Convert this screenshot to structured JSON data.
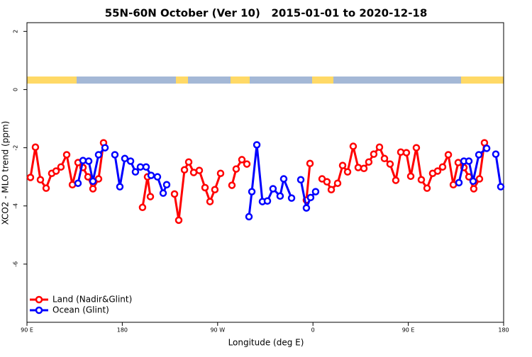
{
  "chart_data": {
    "type": "line",
    "title": "55N-60N October (Ver 10)   2015-01-01 to 2020-12-18",
    "x_label": "Longitude (deg E)",
    "y_label": "XCO2 - MLO trend (ppm)",
    "xlim": [
      90,
      540
    ],
    "ylim": [
      -8,
      2.3
    ],
    "xticks": [
      {
        "value": 90,
        "label": "90 E"
      },
      {
        "value": 180,
        "label": "180"
      },
      {
        "value": 270,
        "label": "90 W"
      },
      {
        "value": 360,
        "label": "0"
      },
      {
        "value": 450,
        "label": "90 E"
      },
      {
        "value": 540,
        "label": "180"
      }
    ],
    "yticks": [
      2,
      0,
      -2,
      -4,
      -6
    ],
    "legend": "lower left",
    "series": [
      {
        "name": "Land (Nadir&Glint)",
        "color": "#ff0000",
        "x": [
          93.3,
          98.0,
          102.7,
          108.1,
          113.4,
          117.5,
          122.1,
          127.5,
          132.9,
          138.2,
          142.9,
          147.6,
          152.3,
          157.6,
          162.3,
          null,
          199.1,
          203.8,
          206.5,
          null,
          229.3,
          233.3,
          238.7,
          242.7,
          247.4,
          252.7,
          258.1,
          262.8,
          267.4,
          272.8,
          null,
          283.5,
          287.5,
          292.9,
          297.6,
          null,
          353.8,
          357.2,
          null,
          368.6,
          373.2,
          377.3,
          383.3,
          388.0,
          392.7,
          398.0,
          402.7,
          408.1,
          412.7,
          417.4,
          422.8,
          427.5,
          432.8,
          438.2,
          442.9,
          448.2,
          452.3,
          457.6,
          462.3,
          467.7,
          473.0,
          477.7,
          482.4,
          487.8,
          492.5,
          497.1,
          502.5,
          507.2,
          511.8,
          517.2,
          521.9
        ],
        "values": [
          -3.02,
          -1.98,
          -3.1,
          -3.39,
          -2.88,
          -2.8,
          -2.66,
          -2.24,
          -3.27,
          -2.51,
          -2.68,
          -3.0,
          -3.41,
          -3.07,
          -1.83,
          null,
          -4.05,
          -3.0,
          -3.68,
          null,
          -3.59,
          -4.49,
          -2.76,
          -2.49,
          -2.85,
          -2.78,
          -3.37,
          -3.85,
          -3.44,
          -2.88,
          null,
          -3.29,
          -2.73,
          -2.41,
          -2.56,
          null,
          -3.8,
          -2.54,
          null,
          -3.07,
          -3.17,
          -3.44,
          -3.22,
          -2.61,
          -2.83,
          -1.95,
          -2.68,
          -2.71,
          -2.49,
          -2.22,
          -1.98,
          -2.37,
          -2.56,
          -3.12,
          -2.15,
          -2.17,
          -2.98,
          -2.0,
          -3.1,
          -3.39,
          -2.88,
          -2.8,
          -2.66,
          -2.24,
          -3.27,
          -2.51,
          -2.68,
          -3.0,
          -3.41,
          -3.07,
          -1.83
        ]
      },
      {
        "name": "Ocean (Glint)",
        "color": "#0000ff",
        "x": [
          138.2,
          142.9,
          148.3,
          152.3,
          157.6,
          163.7,
          null,
          173.0,
          177.7,
          182.4,
          187.8,
          192.4,
          197.1,
          202.5,
          207.2,
          213.2,
          218.6,
          221.9,
          null,
          299.6,
          302.3,
          307.0,
          312.3,
          317.0,
          322.3,
          329.0,
          332.4,
          339.8,
          null,
          348.5,
          353.8,
          357.8,
          362.5,
          null,
          497.8,
          502.5,
          507.2,
          511.2,
          516.6,
          524.0,
          null,
          532.6,
          537.3
        ],
        "values": [
          -3.22,
          -2.44,
          -2.46,
          -3.15,
          -2.24,
          -2.0,
          null,
          -2.24,
          -3.34,
          -2.37,
          -2.46,
          -2.83,
          -2.66,
          -2.66,
          -2.95,
          -3.0,
          -3.56,
          -3.27,
          null,
          -4.37,
          -3.51,
          -1.9,
          -3.85,
          -3.83,
          -3.41,
          -3.66,
          -3.07,
          -3.73,
          null,
          -3.1,
          -4.07,
          -3.71,
          -3.51,
          null,
          -3.2,
          -2.46,
          -2.46,
          -3.15,
          -2.24,
          -2.02,
          null,
          -2.22,
          -3.34
        ]
      }
    ]
  }
}
